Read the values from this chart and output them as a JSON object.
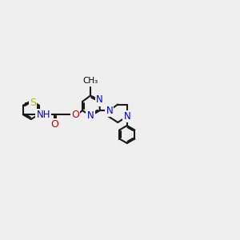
{
  "bg_color": "#efefef",
  "bond_color": "#1a1a1a",
  "bond_lw": 1.5,
  "S_color": "#b8b800",
  "N_color": "#0000dd",
  "O_color": "#cc0000",
  "font_size": 8.0,
  "figsize": [
    3.0,
    3.0
  ],
  "dpi": 100,
  "xlim": [
    0,
    12
  ],
  "ylim": [
    0,
    10
  ]
}
